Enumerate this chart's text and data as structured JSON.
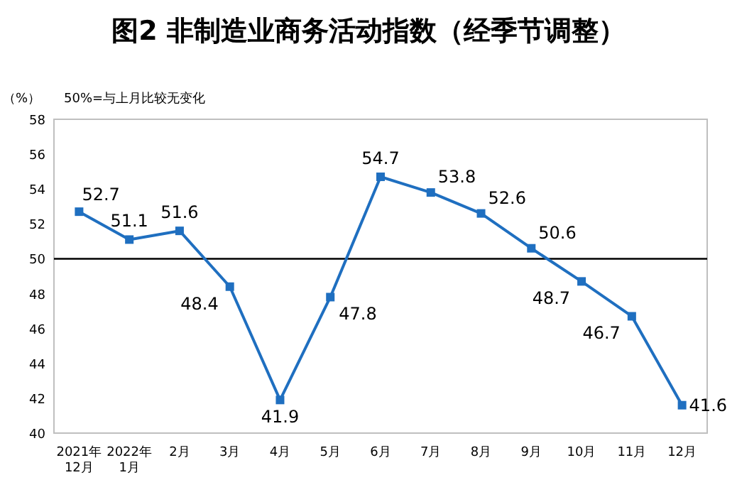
{
  "chart_data": {
    "type": "line",
    "title": "图2  非制造业商务活动指数（经季节调整）",
    "ylabel": "（%）",
    "annotations": [
      "50%=与上月比较无变化"
    ],
    "categories": [
      "2021年\n12月",
      "2022年\n1月",
      "2月",
      "3月",
      "4月",
      "5月",
      "6月",
      "7月",
      "8月",
      "9月",
      "10月",
      "11月",
      "12月"
    ],
    "series": [
      {
        "color": "#1f6fc0",
        "values": [
          52.7,
          51.1,
          51.6,
          48.4,
          41.9,
          47.8,
          54.7,
          53.8,
          52.6,
          50.6,
          48.7,
          46.7,
          41.6
        ]
      }
    ],
    "ylim": [
      40,
      58
    ],
    "yticks": [
      40,
      42,
      44,
      46,
      48,
      50,
      52,
      54,
      56,
      58
    ],
    "ref_lines": [
      {
        "axis": "y",
        "value": 50,
        "color": "#000000"
      }
    ],
    "marker": "square",
    "line_style": "solid",
    "grid": false,
    "data_labels": true
  }
}
